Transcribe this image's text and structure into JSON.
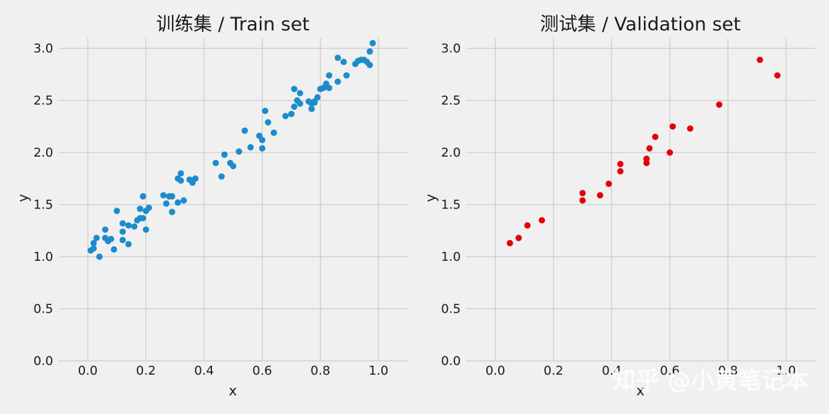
{
  "watermark": "知乎 @小黄笔记本",
  "chart_data": [
    {
      "type": "scatter",
      "title": "训练集 / Train set",
      "xlabel": "x",
      "ylabel": "y",
      "xlim": [
        -0.1,
        1.1
      ],
      "ylim": [
        0.0,
        3.1
      ],
      "xticks": [
        "0.0",
        "0.2",
        "0.4",
        "0.6",
        "0.8",
        "1.0"
      ],
      "yticks": [
        "0.0",
        "0.5",
        "1.0",
        "1.5",
        "2.0",
        "2.5",
        "3.0"
      ],
      "grid": true,
      "color": "#1c8ccb",
      "series": [
        {
          "x": [
            0.01,
            0.02,
            0.02,
            0.03,
            0.04,
            0.06,
            0.06,
            0.07,
            0.08,
            0.09,
            0.1,
            0.12,
            0.12,
            0.12,
            0.14,
            0.14,
            0.16,
            0.17,
            0.18,
            0.18,
            0.19,
            0.19,
            0.2,
            0.2,
            0.21,
            0.26,
            0.27,
            0.28,
            0.29,
            0.29,
            0.31,
            0.31,
            0.32,
            0.32,
            0.33,
            0.35,
            0.36,
            0.37,
            0.44,
            0.46,
            0.47,
            0.49,
            0.5,
            0.52,
            0.54,
            0.56,
            0.59,
            0.6,
            0.6,
            0.61,
            0.62,
            0.64,
            0.68,
            0.7,
            0.71,
            0.71,
            0.72,
            0.73,
            0.73,
            0.76,
            0.77,
            0.77,
            0.78,
            0.78,
            0.79,
            0.8,
            0.81,
            0.82,
            0.83,
            0.83,
            0.86,
            0.86,
            0.88,
            0.89,
            0.92,
            0.93,
            0.94,
            0.95,
            0.96,
            0.97,
            0.97,
            0.98
          ],
          "y": [
            1.06,
            1.13,
            1.08,
            1.18,
            1.0,
            1.26,
            1.18,
            1.15,
            1.17,
            1.07,
            1.44,
            1.16,
            1.24,
            1.32,
            1.3,
            1.12,
            1.29,
            1.35,
            1.37,
            1.46,
            1.58,
            1.37,
            1.26,
            1.44,
            1.47,
            1.59,
            1.51,
            1.58,
            1.43,
            1.58,
            1.52,
            1.75,
            1.8,
            1.73,
            1.54,
            1.74,
            1.71,
            1.75,
            1.9,
            1.77,
            1.98,
            1.9,
            1.87,
            2.01,
            2.21,
            2.05,
            2.16,
            2.04,
            2.12,
            2.4,
            2.29,
            2.19,
            2.35,
            2.37,
            2.44,
            2.61,
            2.5,
            2.47,
            2.57,
            2.49,
            2.47,
            2.42,
            2.48,
            2.49,
            2.53,
            2.61,
            2.62,
            2.66,
            2.62,
            2.74,
            2.68,
            2.91,
            2.87,
            2.74,
            2.85,
            2.88,
            2.89,
            2.89,
            2.87,
            2.97,
            2.84,
            3.05
          ]
        }
      ]
    },
    {
      "type": "scatter",
      "title": "测试集 / Validation set",
      "xlabel": "x",
      "ylabel": "y",
      "xlim": [
        -0.1,
        1.1
      ],
      "ylim": [
        0.0,
        3.1
      ],
      "xticks": [
        "0.0",
        "0.2",
        "0.4",
        "0.6",
        "0.8",
        "1.0"
      ],
      "yticks": [
        "0.0",
        "0.5",
        "1.0",
        "1.5",
        "2.0",
        "2.5",
        "3.0"
      ],
      "grid": true,
      "color": "#e3000b",
      "series": [
        {
          "x": [
            0.05,
            0.08,
            0.11,
            0.16,
            0.3,
            0.3,
            0.36,
            0.39,
            0.43,
            0.43,
            0.52,
            0.52,
            0.53,
            0.55,
            0.6,
            0.61,
            0.67,
            0.77,
            0.91,
            0.97
          ],
          "y": [
            1.13,
            1.18,
            1.3,
            1.35,
            1.54,
            1.61,
            1.59,
            1.7,
            1.89,
            1.82,
            1.94,
            1.9,
            2.04,
            2.15,
            2.0,
            2.25,
            2.23,
            2.46,
            2.89,
            2.74
          ]
        }
      ]
    }
  ]
}
